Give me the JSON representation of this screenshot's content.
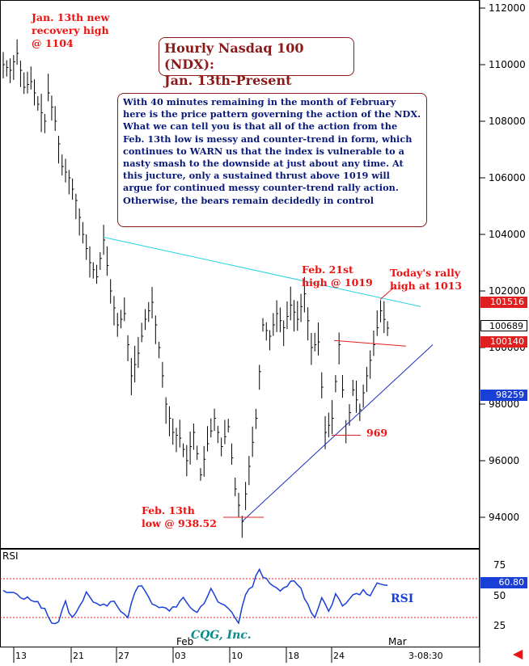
{
  "title_lines": [
    "Hourly Nasdaq 100 (NDX):",
    "Jan. 13th-Present"
  ],
  "commentary": "With 40 minutes remaining in the month of February here is the price pattern governing the action of the NDX. What we can tell you is that all of the action from the Feb. 13th low is messy and counter-trend in form, which continues to WARN us that the index is vulnerable to a nasty smash to the downside at just about any time. At this jucture, only a sustained thrust above 1019 will argue for continued messy counter-trend rally action. Otherwise, the bears remain decidedly in control",
  "annotations": {
    "jan13": "Jan. 13th new\nrecovery high\n@ 1104",
    "feb21": "Feb. 21st\nhigh @ 1019",
    "today": "Today's rally\nhigh at 1013",
    "low969": "969",
    "feb13": "Feb. 13th\nlow @ 938.52"
  },
  "price_boxes": [
    {
      "label": "101516",
      "color": "#e02020",
      "value": 1015.16
    },
    {
      "label": "100689",
      "color": "#000000",
      "value": 1006.89
    },
    {
      "label": "100140",
      "color": "#e02020",
      "value": 1001.4
    },
    {
      "label": "98259",
      "color": "#1a3fd6",
      "value": 982.59
    },
    {
      "label": "60.80",
      "color": "#1a3fd6",
      "value": 60.8
    }
  ],
  "rsi_label": "RSI",
  "rsi_label_right": "RSI",
  "watermark": "CQG, Inc.",
  "time_label": "3-08:30",
  "colors": {
    "bars": "#000000",
    "upper_trend": "#22d3e0",
    "lower_trend": "#1e2fb8",
    "channel": "#e02020",
    "rsi": "#1a3fd6",
    "rsi_levels": "#cc2222"
  },
  "chart_data": {
    "type": "bar",
    "title": "Hourly Nasdaq 100 (NDX): Jan. 13th-Present",
    "y_ticks": [
      "112000",
      "110000",
      "108000",
      "106000",
      "104000",
      "102000",
      "100000",
      "98000",
      "96000",
      "94000"
    ],
    "ylim": [
      925,
      1123
    ],
    "x_ticks": [
      "13",
      "21",
      "27",
      "03",
      "10",
      "18",
      "24"
    ],
    "x_months": [
      "Feb",
      "Mar"
    ],
    "rsi_ticks": [
      "75",
      "50",
      "25"
    ],
    "rsi_levels": [
      70,
      30
    ],
    "path_points": [
      [
        0,
        1100
      ],
      [
        2,
        1098
      ],
      [
        4,
        1104
      ],
      [
        6,
        1092
      ],
      [
        8,
        1094
      ],
      [
        10,
        1086
      ],
      [
        12,
        1080
      ],
      [
        13,
        1090
      ],
      [
        15,
        1080
      ],
      [
        17,
        1064
      ],
      [
        19,
        1060
      ],
      [
        21,
        1052
      ],
      [
        23,
        1040
      ],
      [
        25,
        1030
      ],
      [
        27,
        1025
      ],
      [
        29,
        1038
      ],
      [
        31,
        1020
      ],
      [
        33,
        1008
      ],
      [
        35,
        1012
      ],
      [
        37,
        990
      ],
      [
        39,
        998
      ],
      [
        41,
        1010
      ],
      [
        43,
        1016
      ],
      [
        45,
        1000
      ],
      [
        47,
        980
      ],
      [
        49,
        970
      ],
      [
        51,
        968
      ],
      [
        53,
        960
      ],
      [
        55,
        970
      ],
      [
        57,
        955
      ],
      [
        59,
        966
      ],
      [
        61,
        975
      ],
      [
        63,
        965
      ],
      [
        65,
        972
      ],
      [
        67,
        950
      ],
      [
        69,
        938.5
      ],
      [
        71,
        958
      ],
      [
        73,
        975
      ],
      [
        75,
        1008
      ],
      [
        77,
        1004
      ],
      [
        79,
        1012
      ],
      [
        81,
        1007
      ],
      [
        83,
        1015
      ],
      [
        85,
        1010
      ],
      [
        87,
        1019
      ],
      [
        89,
        1000
      ],
      [
        91,
        1002
      ],
      [
        93,
        970
      ],
      [
        95,
        975
      ],
      [
        97,
        1001
      ],
      [
        99,
        969
      ],
      [
        101,
        985
      ],
      [
        103,
        978
      ],
      [
        105,
        990
      ],
      [
        107,
        1001
      ],
      [
        109,
        1013
      ],
      [
        111,
        1006.9
      ]
    ],
    "n_bars": 112,
    "rsi_path": [
      [
        0,
        58
      ],
      [
        4,
        55
      ],
      [
        8,
        48
      ],
      [
        12,
        40
      ],
      [
        14,
        25
      ],
      [
        16,
        28
      ],
      [
        18,
        45
      ],
      [
        20,
        30
      ],
      [
        24,
        55
      ],
      [
        28,
        40
      ],
      [
        32,
        45
      ],
      [
        36,
        32
      ],
      [
        38,
        55
      ],
      [
        40,
        64
      ],
      [
        44,
        40
      ],
      [
        48,
        38
      ],
      [
        52,
        48
      ],
      [
        56,
        35
      ],
      [
        60,
        58
      ],
      [
        62,
        46
      ],
      [
        66,
        38
      ],
      [
        68,
        25
      ],
      [
        70,
        52
      ],
      [
        72,
        62
      ],
      [
        74,
        80
      ],
      [
        76,
        68
      ],
      [
        80,
        60
      ],
      [
        84,
        66
      ],
      [
        86,
        60
      ],
      [
        88,
        44
      ],
      [
        90,
        30
      ],
      [
        92,
        52
      ],
      [
        94,
        36
      ],
      [
        96,
        54
      ],
      [
        98,
        42
      ],
      [
        100,
        52
      ],
      [
        104,
        58
      ],
      [
        106,
        55
      ],
      [
        108,
        66
      ],
      [
        110,
        60.8
      ]
    ]
  }
}
